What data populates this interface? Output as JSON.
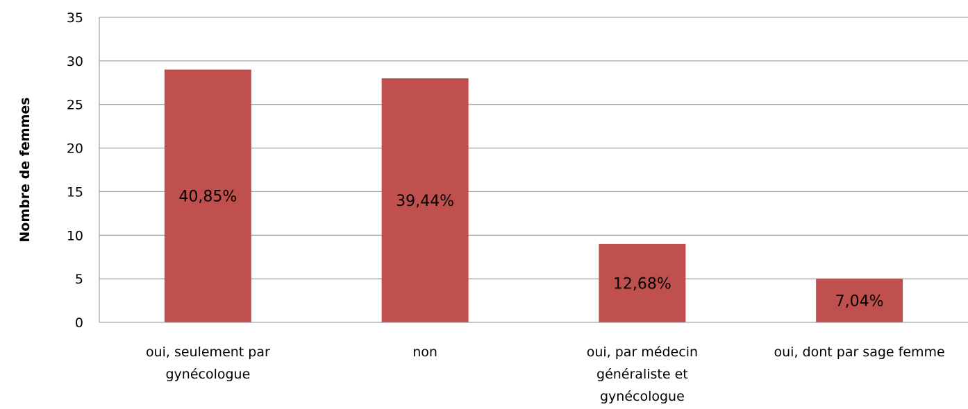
{
  "chart_data": {
    "type": "bar",
    "title": "",
    "xlabel": "",
    "ylabel": "Nombre de femmes",
    "ylim": [
      0,
      35
    ],
    "yticks": [
      "0",
      "5",
      "10",
      "15",
      "20",
      "25",
      "30",
      "35"
    ],
    "grid": true,
    "legend": "none",
    "bar_color": "#C0504D",
    "categories": [
      [
        "oui, seulement par",
        "gynécologue"
      ],
      [
        "non"
      ],
      [
        "oui, par médecin",
        "généraliste et",
        "gynécologue"
      ],
      [
        "oui, dont par sage femme"
      ]
    ],
    "values": [
      29,
      28,
      9,
      5
    ],
    "data_labels": [
      "40,85%",
      "39,44%",
      "12,68%",
      "7,04%"
    ]
  }
}
